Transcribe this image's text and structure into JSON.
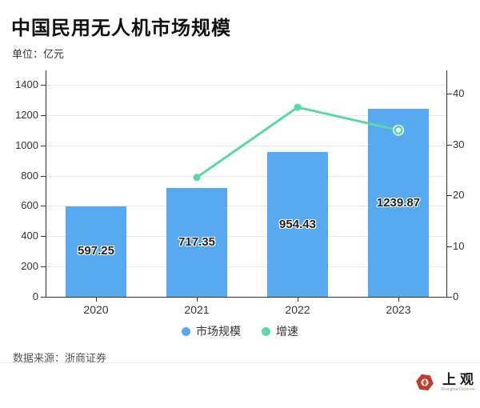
{
  "header": {
    "title": "中国民用无人机市场规模",
    "unit": "单位：亿元"
  },
  "chart_data": {
    "type": "bar",
    "subtype": "bar + line, dual y-axis",
    "categories": [
      "2020",
      "2021",
      "2022",
      "2023"
    ],
    "series": [
      {
        "name": "市场规模",
        "type": "bar",
        "y_axis": "left",
        "color": "#57A9F0",
        "values": [
          597.25,
          717.35,
          954.43,
          1239.87
        ],
        "data_labels": [
          "597.25",
          "717.35",
          "954.43",
          "1239.87"
        ],
        "data_label_position": "centered inside bar"
      },
      {
        "name": "增速",
        "type": "line",
        "y_axis": "right",
        "color": "#5AD8A6",
        "values": [
          null,
          23.5,
          37.3,
          32.8
        ],
        "values_note": "growth-rate points estimated from plot; no numeric labels shown"
      }
    ],
    "left_axis": {
      "min": 0,
      "max": 1400,
      "tick_step": 200,
      "ticks": [
        0,
        200,
        400,
        600,
        800,
        1000,
        1200,
        1400
      ]
    },
    "right_axis": {
      "min": 0,
      "max": 40,
      "tick_step": 10,
      "ticks": [
        0,
        10,
        20,
        30,
        40
      ]
    },
    "grid": "horizontal gridlines from left axis only",
    "legend_position": "bottom-center",
    "highlight": {
      "category": "2023",
      "series": "增速",
      "style": "hollow marker with white halo"
    }
  },
  "legend": {
    "items": [
      {
        "label": "市场规模",
        "color": "#57A9F0"
      },
      {
        "label": "增速",
        "color": "#5AD8A6"
      }
    ]
  },
  "footer": {
    "source": "数据来源：浙商证券",
    "logo_text": "上观",
    "logo_subtext": "Shanghai Observer",
    "logo_color": "#C23A2B"
  }
}
